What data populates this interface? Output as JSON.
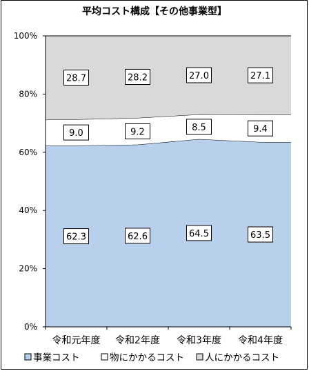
{
  "chart_data": {
    "type": "area",
    "title": "平均コスト構成【その他事業型】",
    "categories": [
      "令和元年度",
      "令和2年度",
      "令和3年度",
      "令和4年度"
    ],
    "series": [
      {
        "name": "事業コスト",
        "values": [
          62.3,
          62.6,
          64.5,
          63.5
        ],
        "color": "#b8d0ec"
      },
      {
        "name": "物にかかるコスト",
        "values": [
          9.0,
          9.2,
          8.5,
          9.4
        ],
        "color": "#ffffff"
      },
      {
        "name": "人にかかるコスト",
        "values": [
          28.7,
          28.2,
          27.0,
          27.1
        ],
        "color": "#d9d9d9"
      }
    ],
    "value_labels": {
      "事業コスト": [
        "62.3",
        "62.6",
        "64.5",
        "63.5"
      ],
      "物にかかるコスト": [
        "9.0",
        "9.2",
        "8.5",
        "9.4"
      ],
      "人にかかるコスト": [
        "28.7",
        "28.2",
        "27.0",
        "27.1"
      ]
    },
    "y_ticks": [
      "0%",
      "20%",
      "40%",
      "60%",
      "80%",
      "100%"
    ],
    "ylim": [
      0,
      100
    ],
    "stacked": "percent",
    "grid": false,
    "legend_position": "bottom"
  }
}
